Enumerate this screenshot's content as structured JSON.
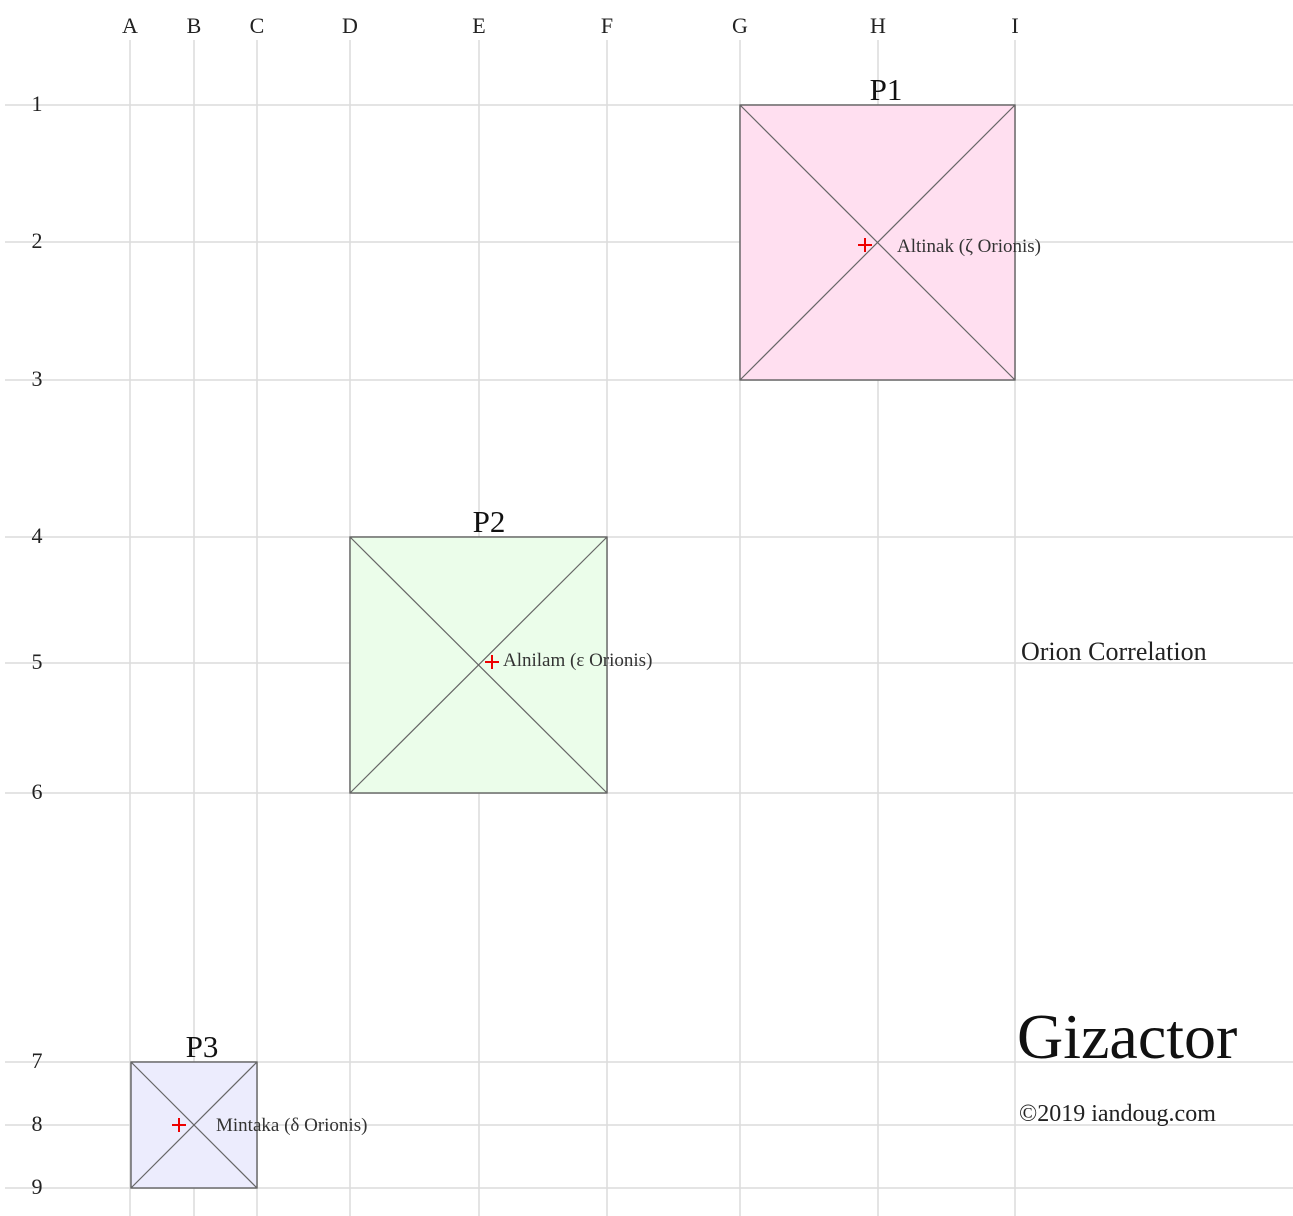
{
  "columns": [
    "A",
    "B",
    "C",
    "D",
    "E",
    "F",
    "G",
    "H",
    "I"
  ],
  "rows": [
    "1",
    "2",
    "3",
    "4",
    "5",
    "6",
    "7",
    "8",
    "9"
  ],
  "pyramids": [
    {
      "label": "P1",
      "star": "Altinak (ζ Orionis)"
    },
    {
      "label": "P2",
      "star": "Alnilam (ε Orionis)"
    },
    {
      "label": "P3",
      "star": "Mintaka (δ Orionis)"
    }
  ],
  "subtitle": "Orion Correlation",
  "title": "Gizactor",
  "copyright": "©2019 iandoug.com"
}
